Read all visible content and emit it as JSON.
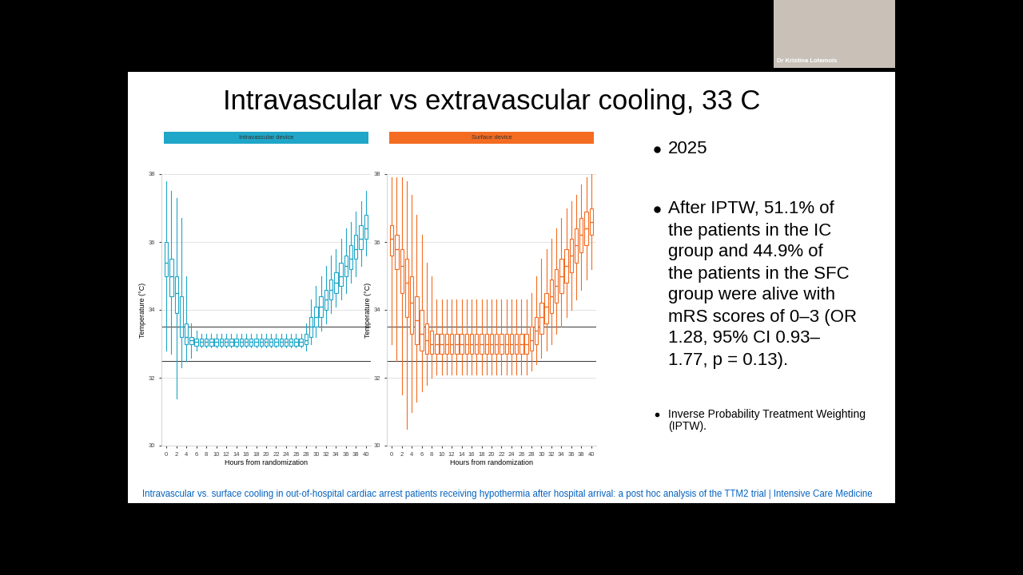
{
  "slide": {
    "title": "Intravascular vs extravascular cooling, 33 C",
    "bullets": [
      [
        "2025"
      ],
      [
        "After IPTW, 51.1% of",
        "the patients in the IC",
        "group and 44.9% of",
        "the patients in the SFC",
        "group were alive with",
        "mRS scores of 0–3 (OR",
        "1.28, 95% CI 0.93–",
        "1.77, p = 0.13)."
      ]
    ],
    "note": [
      "Inverse Probability Treatment Weighting",
      "(IPTW)."
    ],
    "link": "Intravascular vs. surface cooling in out-of-hospital cardiac arrest patients receiving hypothermia after hospital arrival: a post hoc analysis of the TTM2 trial | Intensive Care Medicine",
    "speaker": "Dr Kristina Lotamois"
  },
  "chart_data": [
    {
      "type": "box",
      "title": "Intravascular device",
      "color": "#1fa6c8",
      "x_label": "Hours from randomization",
      "y_label": "Temperature (°C)",
      "xlim": [
        -1,
        41
      ],
      "xticks": [
        0,
        2,
        4,
        6,
        8,
        10,
        12,
        14,
        16,
        18,
        20,
        22,
        24,
        26,
        28,
        30,
        32,
        34,
        36,
        38,
        40
      ],
      "ylim": [
        30,
        38
      ],
      "yticks": [
        30,
        32,
        34,
        36,
        38
      ],
      "grid": true,
      "reference_lines": [
        32.5,
        33.5
      ],
      "x": [
        0,
        1,
        2,
        3,
        4,
        5,
        6,
        7,
        8,
        9,
        10,
        11,
        12,
        13,
        14,
        15,
        16,
        17,
        18,
        19,
        20,
        21,
        22,
        23,
        24,
        25,
        26,
        27,
        28,
        29,
        30,
        31,
        32,
        33,
        34,
        35,
        36,
        37,
        38,
        39,
        40
      ],
      "whisker_low": [
        32.8,
        32.7,
        31.4,
        32.3,
        32.5,
        32.6,
        32.8,
        32.9,
        32.9,
        32.9,
        32.9,
        32.9,
        32.9,
        32.9,
        32.9,
        32.9,
        32.9,
        32.9,
        32.9,
        32.9,
        32.9,
        32.9,
        32.9,
        32.9,
        32.9,
        32.9,
        32.9,
        32.9,
        32.8,
        33.0,
        33.2,
        33.4,
        33.6,
        33.9,
        34.1,
        34.3,
        34.5,
        34.8,
        35.0,
        35.3,
        35.6
      ],
      "q1": [
        35.0,
        34.4,
        33.9,
        33.2,
        33.0,
        33.0,
        32.95,
        32.95,
        32.95,
        32.95,
        32.95,
        32.95,
        32.95,
        32.95,
        32.95,
        32.95,
        32.95,
        32.95,
        32.95,
        32.95,
        32.95,
        32.95,
        32.95,
        32.95,
        32.95,
        32.95,
        32.95,
        32.95,
        33.0,
        33.2,
        33.5,
        33.8,
        34.0,
        34.3,
        34.5,
        34.7,
        35.0,
        35.2,
        35.5,
        35.8,
        36.1
      ],
      "median": [
        35.4,
        35.0,
        34.5,
        33.5,
        33.2,
        33.1,
        33.05,
        33.05,
        33.05,
        33.05,
        33.05,
        33.05,
        33.05,
        33.05,
        33.05,
        33.05,
        33.05,
        33.05,
        33.05,
        33.05,
        33.05,
        33.05,
        33.05,
        33.05,
        33.05,
        33.05,
        33.05,
        33.05,
        33.1,
        33.5,
        33.8,
        34.1,
        34.3,
        34.6,
        34.8,
        35.0,
        35.3,
        35.5,
        35.8,
        36.1,
        36.4
      ],
      "q3": [
        36.0,
        35.5,
        35.0,
        34.4,
        33.6,
        33.2,
        33.15,
        33.15,
        33.15,
        33.15,
        33.15,
        33.15,
        33.15,
        33.15,
        33.15,
        33.15,
        33.15,
        33.15,
        33.15,
        33.15,
        33.15,
        33.15,
        33.15,
        33.15,
        33.15,
        33.15,
        33.15,
        33.15,
        33.3,
        33.8,
        34.1,
        34.4,
        34.6,
        34.9,
        35.1,
        35.4,
        35.6,
        35.9,
        36.2,
        36.5,
        36.8
      ],
      "whisker_high": [
        37.8,
        37.5,
        37.3,
        36.7,
        35.0,
        33.6,
        33.4,
        33.3,
        33.3,
        33.3,
        33.3,
        33.3,
        33.3,
        33.3,
        33.3,
        33.3,
        33.3,
        33.3,
        33.3,
        33.3,
        33.3,
        33.3,
        33.3,
        33.3,
        33.3,
        33.3,
        33.3,
        33.3,
        33.6,
        34.3,
        34.7,
        35.0,
        35.3,
        35.6,
        35.8,
        36.1,
        36.4,
        36.6,
        36.9,
        37.2,
        37.5
      ]
    },
    {
      "type": "box",
      "title": "Surface device",
      "color": "#f36c21",
      "x_label": "Hours from randomization",
      "y_label": "Temperature (°C)",
      "xlim": [
        -1,
        41
      ],
      "xticks": [
        0,
        2,
        4,
        6,
        8,
        10,
        12,
        14,
        16,
        18,
        20,
        22,
        24,
        26,
        28,
        30,
        32,
        34,
        36,
        38,
        40
      ],
      "ylim": [
        30,
        38
      ],
      "yticks": [
        30,
        32,
        34,
        36,
        38
      ],
      "grid": true,
      "reference_lines": [
        32.5,
        33.5
      ],
      "x": [
        0,
        1,
        2,
        3,
        4,
        5,
        6,
        7,
        8,
        9,
        10,
        11,
        12,
        13,
        14,
        15,
        16,
        17,
        18,
        19,
        20,
        21,
        22,
        23,
        24,
        25,
        26,
        27,
        28,
        29,
        30,
        31,
        32,
        33,
        34,
        35,
        36,
        37,
        38,
        39,
        40
      ],
      "whisker_low": [
        33.0,
        32.5,
        31.5,
        30.5,
        31.0,
        31.3,
        31.6,
        31.8,
        32.0,
        32.1,
        32.1,
        32.1,
        32.1,
        32.1,
        32.1,
        32.1,
        32.1,
        32.1,
        32.1,
        32.1,
        32.1,
        32.1,
        32.1,
        32.1,
        32.1,
        32.1,
        32.1,
        32.1,
        32.2,
        32.4,
        32.6,
        32.8,
        33.0,
        33.3,
        33.5,
        33.8,
        34.0,
        34.3,
        34.6,
        34.9,
        35.2
      ],
      "q1": [
        35.6,
        35.2,
        34.5,
        33.8,
        33.3,
        33.0,
        32.8,
        32.7,
        32.7,
        32.7,
        32.7,
        32.7,
        32.7,
        32.7,
        32.7,
        32.7,
        32.7,
        32.7,
        32.7,
        32.7,
        32.7,
        32.7,
        32.7,
        32.7,
        32.7,
        32.7,
        32.7,
        32.7,
        32.8,
        33.0,
        33.3,
        33.6,
        33.9,
        34.2,
        34.5,
        34.8,
        35.1,
        35.4,
        35.7,
        35.9,
        36.2
      ],
      "median": [
        36.1,
        35.8,
        35.3,
        34.8,
        34.2,
        33.7,
        33.3,
        33.1,
        33.0,
        33.0,
        33.0,
        33.0,
        33.0,
        33.0,
        33.0,
        33.0,
        33.0,
        33.0,
        33.0,
        33.0,
        33.0,
        33.0,
        33.0,
        33.0,
        33.0,
        33.0,
        33.0,
        33.0,
        33.1,
        33.4,
        33.8,
        34.1,
        34.4,
        34.7,
        35.0,
        35.3,
        35.6,
        35.9,
        36.2,
        36.4,
        36.6
      ],
      "q3": [
        36.5,
        36.2,
        35.8,
        35.5,
        35.0,
        34.4,
        34.0,
        33.6,
        33.4,
        33.3,
        33.3,
        33.3,
        33.3,
        33.3,
        33.3,
        33.3,
        33.3,
        33.3,
        33.3,
        33.3,
        33.3,
        33.3,
        33.3,
        33.3,
        33.3,
        33.3,
        33.3,
        33.3,
        33.5,
        33.8,
        34.2,
        34.5,
        34.9,
        35.2,
        35.5,
        35.8,
        36.1,
        36.4,
        36.7,
        36.9,
        37.0
      ],
      "whisker_high": [
        37.9,
        37.9,
        37.9,
        37.8,
        37.4,
        36.8,
        36.2,
        35.4,
        35.0,
        34.3,
        34.3,
        34.3,
        34.3,
        34.3,
        34.3,
        34.3,
        34.3,
        34.3,
        34.3,
        34.3,
        34.3,
        34.3,
        34.3,
        34.3,
        34.3,
        34.3,
        34.3,
        34.3,
        34.5,
        35.0,
        35.5,
        35.8,
        36.1,
        36.4,
        36.7,
        37.0,
        37.2,
        37.4,
        37.7,
        37.9,
        38.0
      ]
    }
  ]
}
